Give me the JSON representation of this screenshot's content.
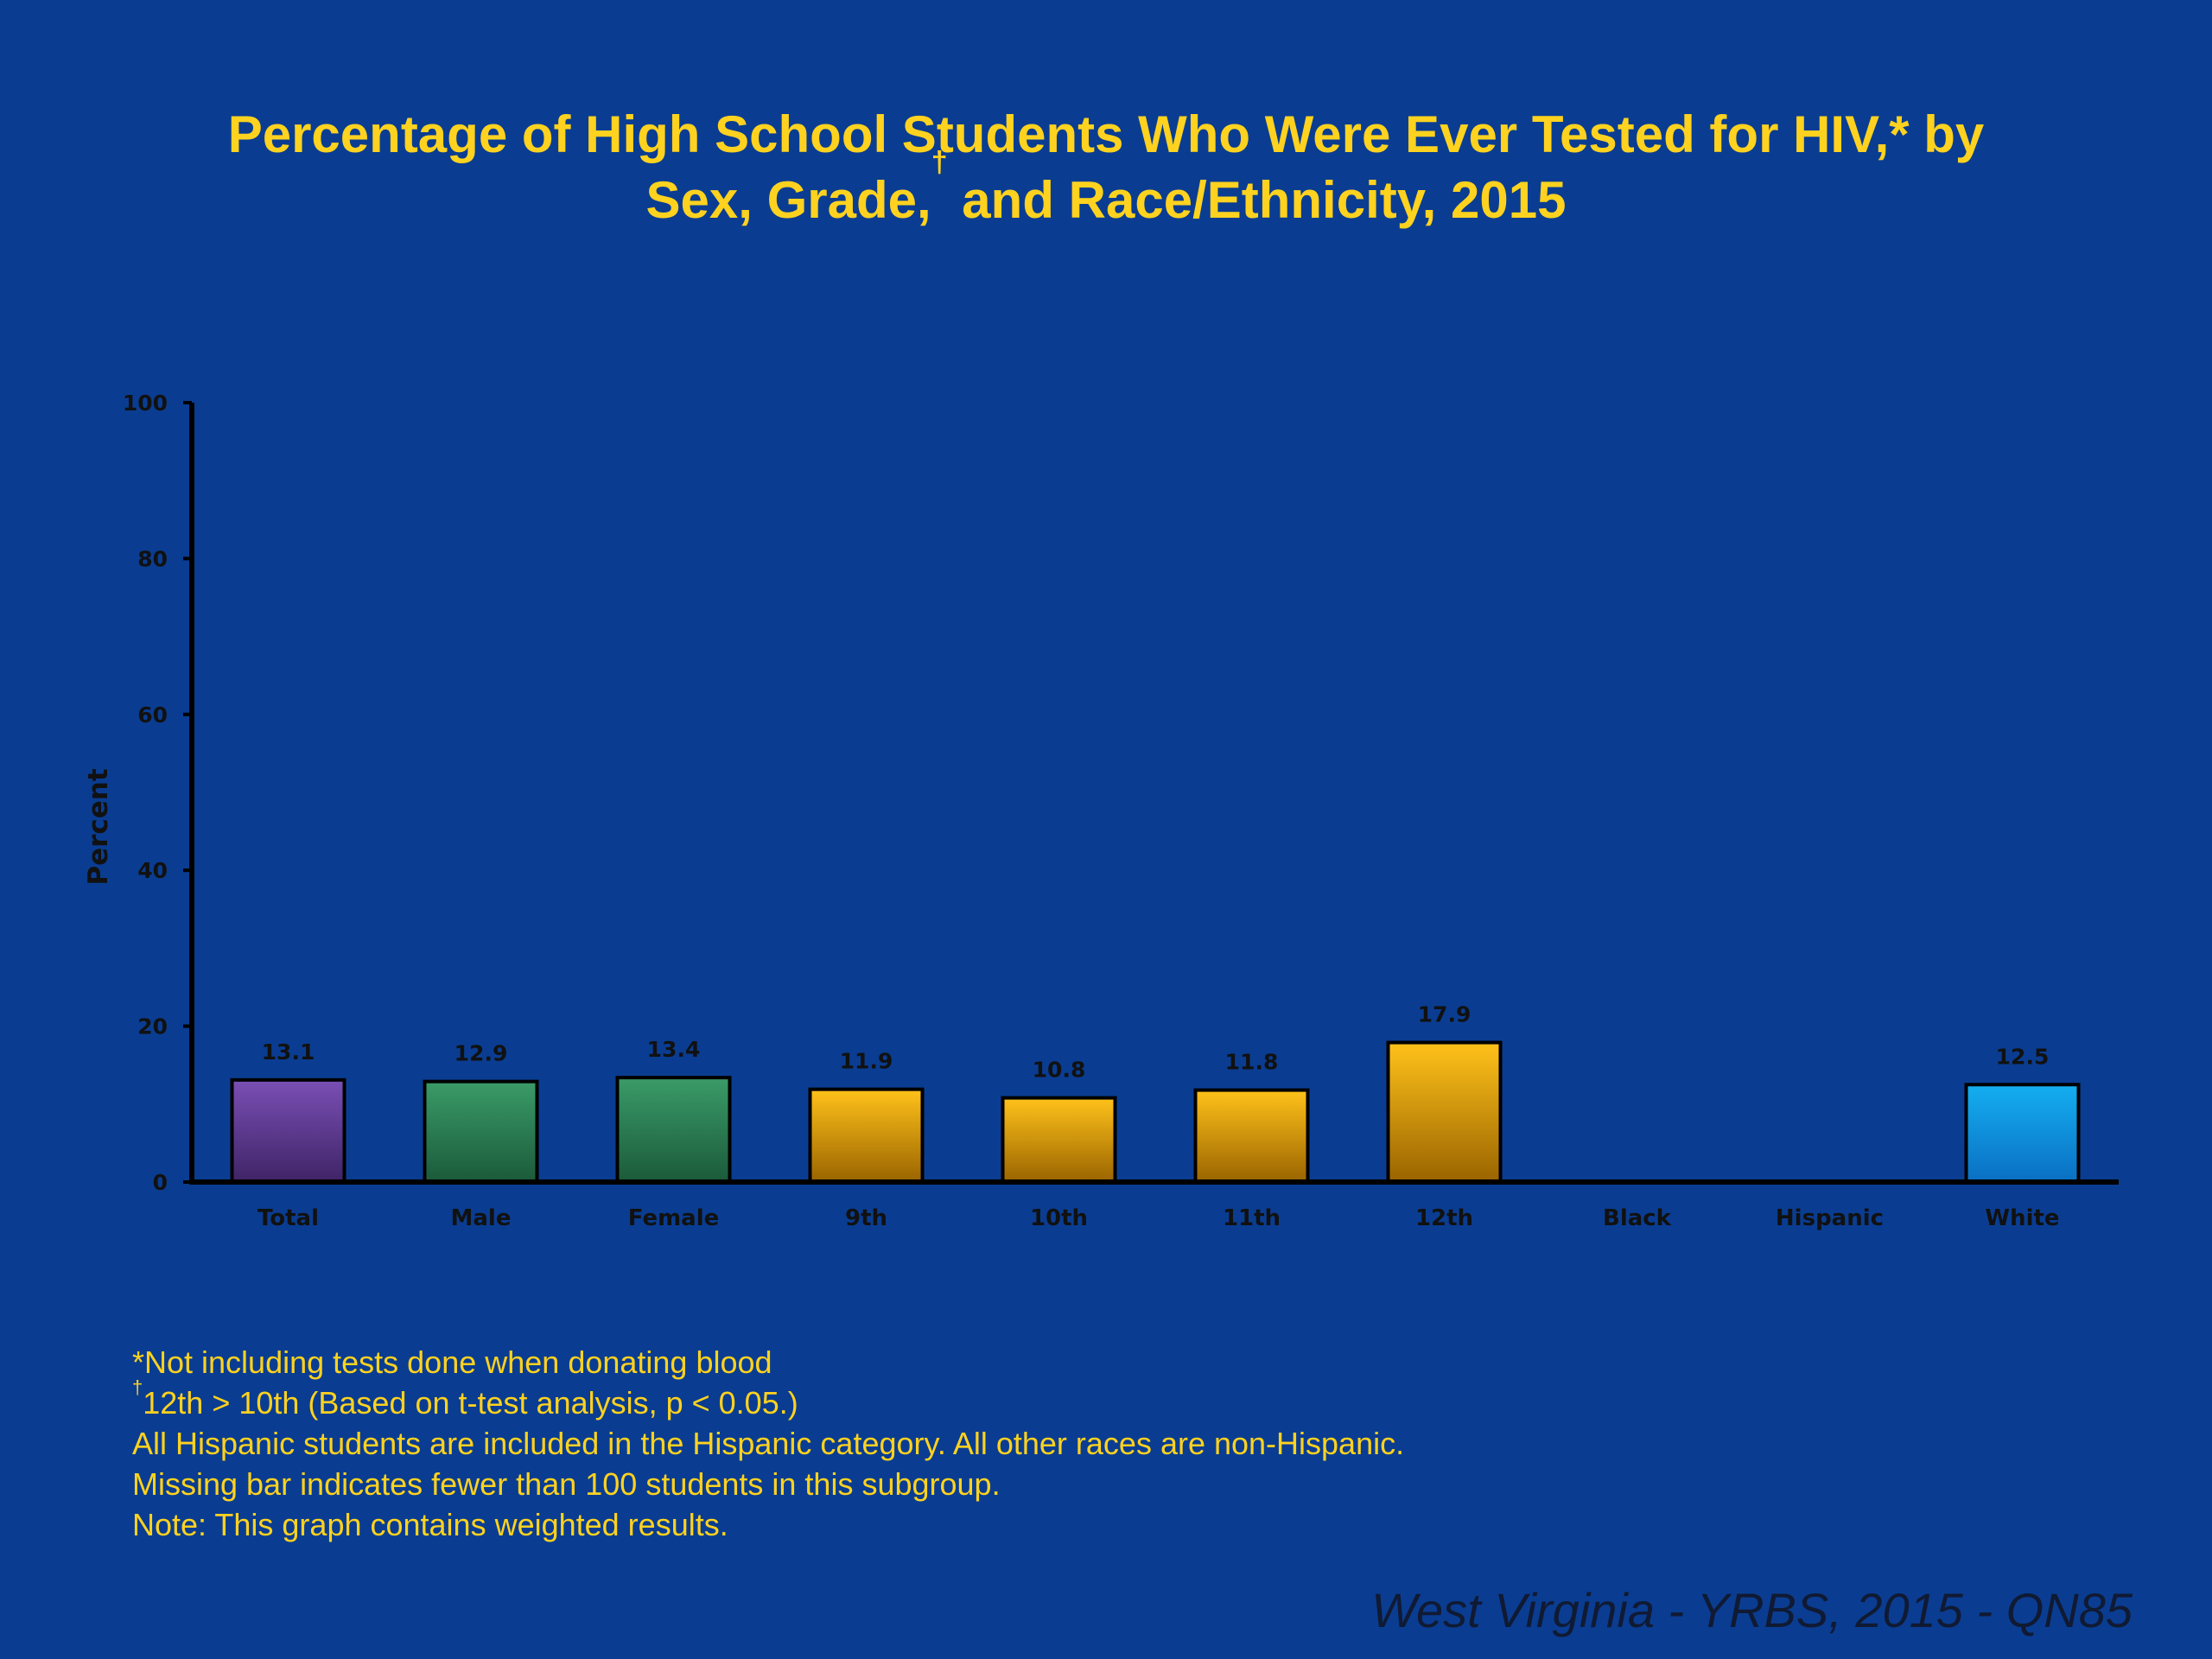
{
  "title": {
    "line1": "Percentage of High School Students Who Were Ever Tested for HIV,* by",
    "line2_a": "Sex, Grade,",
    "line2_sup": "†",
    "line2_b": " and Race/Ethnicity, 2015"
  },
  "chart_data": {
    "type": "bar",
    "ylabel": "Percent",
    "xlabel": "",
    "ylim": [
      0,
      100
    ],
    "yticks": [
      0,
      20,
      40,
      60,
      80,
      100
    ],
    "grid": false,
    "categories": [
      "Total",
      "Male",
      "Female",
      "9th",
      "10th",
      "11th",
      "12th",
      "Black",
      "Hispanic",
      "White"
    ],
    "values": [
      13.1,
      12.9,
      13.4,
      11.9,
      10.8,
      11.8,
      17.9,
      null,
      null,
      12.5
    ],
    "labels": [
      "13.1",
      "12.9",
      "13.4",
      "11.9",
      "10.8",
      "11.8",
      "17.9",
      "",
      "",
      "12.5"
    ],
    "groups": [
      "Total",
      "Sex",
      "Sex",
      "Grade",
      "Grade",
      "Grade",
      "Grade",
      "Race/Ethnicity",
      "Race/Ethnicity",
      "Race/Ethnicity"
    ],
    "colors": {
      "Total": [
        "#7a4fb5",
        "#3f2466"
      ],
      "Sex": [
        "#3a9b68",
        "#1b5a3a"
      ],
      "Grade": [
        "#ffc21a",
        "#9a6400"
      ],
      "Race/Ethnicity": [
        "#14aef0",
        "#0a6fc2"
      ]
    }
  },
  "footnotes": {
    "line1": "*Not including tests done when donating blood",
    "line2_sup": "†",
    "line2": "12th > 10th (Based on t-test analysis, p < 0.05.)",
    "line3": "All Hispanic students are included in the Hispanic category.  All other races are non-Hispanic.",
    "line4": "Missing bar indicates fewer than 100 students in this subgroup.",
    "line5": "Note: This graph contains weighted results."
  },
  "source": "West Virginia - YRBS, 2015 - QN85"
}
